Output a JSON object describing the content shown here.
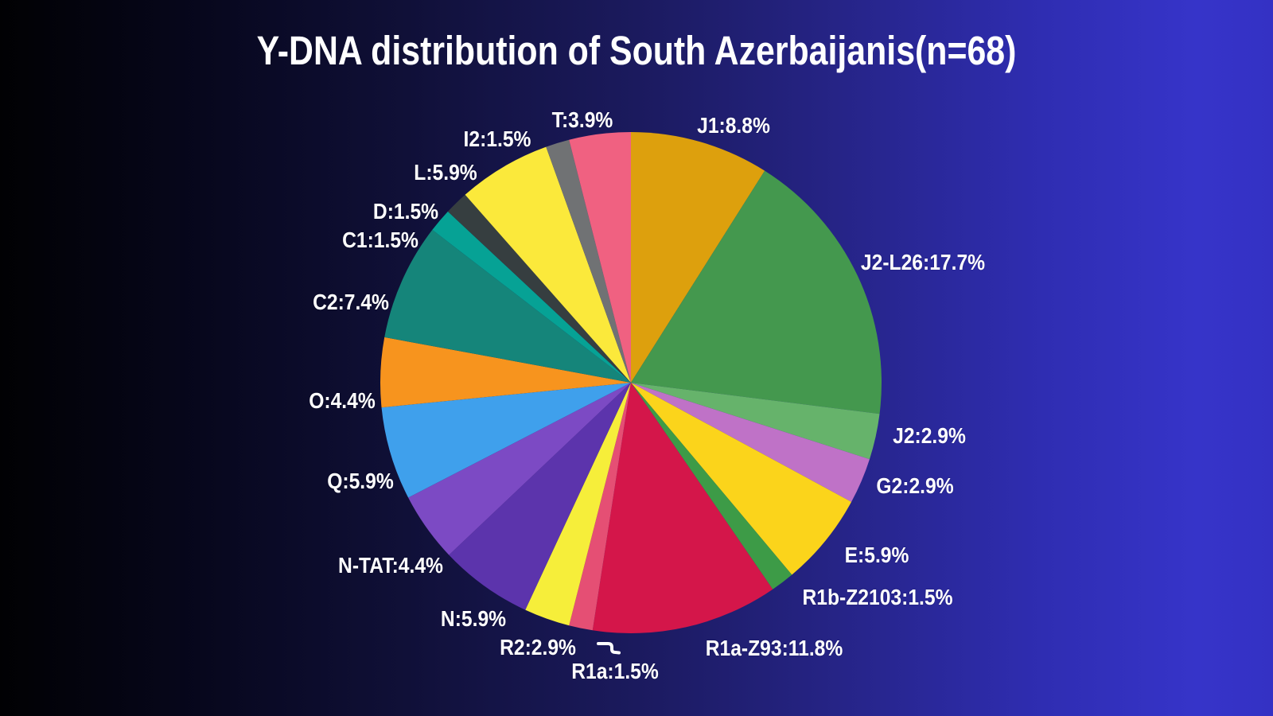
{
  "title": "Y-DNA distribution of South Azerbaijanis(n=68)",
  "colors": {
    "background_left": "#010103",
    "background_right": "#3431c4",
    "text": "#ffffff",
    "leader_line": "#ffffff"
  },
  "chart_data": {
    "type": "pie",
    "title": "Y-DNA distribution of South Azerbaijanis(n=68)",
    "sample_size": 68,
    "start_angle_deg": 0,
    "direction": "clockwise",
    "legend_position": "labels-around-pie",
    "slices": [
      {
        "label": "J1",
        "value": 8.8,
        "display": "J1:8.8%",
        "color": "#DDA00D"
      },
      {
        "label": "J2-L26",
        "value": 17.7,
        "display": "J2-L26:17.7%",
        "color": "#44984E"
      },
      {
        "label": "J2",
        "value": 2.9,
        "display": "J2:2.9%",
        "color": "#66B36B"
      },
      {
        "label": "G2",
        "value": 2.9,
        "display": "G2:2.9%",
        "color": "#BF72C7"
      },
      {
        "label": "E",
        "value": 5.9,
        "display": "E:5.9%",
        "color": "#FBD41B"
      },
      {
        "label": "R1b-Z2103",
        "value": 1.5,
        "display": "R1b-Z2103:1.5%",
        "color": "#3D9B47"
      },
      {
        "label": "R1a-Z93",
        "value": 11.8,
        "display": "R1a-Z93:11.8%",
        "color": "#D4164A"
      },
      {
        "label": "R1a",
        "value": 1.5,
        "display": "R1a:1.5%",
        "color": "#E54F74"
      },
      {
        "label": "R2",
        "value": 2.9,
        "display": "R2:2.9%",
        "color": "#F6EE3A"
      },
      {
        "label": "N",
        "value": 5.9,
        "display": "N:5.9%",
        "color": "#5C34AC"
      },
      {
        "label": "N-TAT",
        "value": 4.4,
        "display": "N-TAT:4.4%",
        "color": "#7C4AC4"
      },
      {
        "label": "Q",
        "value": 5.9,
        "display": "Q:5.9%",
        "color": "#3FA0EC"
      },
      {
        "label": "O",
        "value": 4.4,
        "display": "O:4.4%",
        "color": "#F7941E"
      },
      {
        "label": "C2",
        "value": 7.4,
        "display": "C2:7.4%",
        "color": "#15857A"
      },
      {
        "label": "C1",
        "value": 1.5,
        "display": "C1:1.5%",
        "color": "#06A295"
      },
      {
        "label": "D",
        "value": 1.5,
        "display": "D:1.5%",
        "color": "#363E40"
      },
      {
        "label": "L",
        "value": 5.9,
        "display": "L:5.9%",
        "color": "#FBE93B"
      },
      {
        "label": "I2",
        "value": 1.5,
        "display": "I2:1.5%",
        "color": "#707274"
      },
      {
        "label": "T",
        "value": 3.9,
        "display": "T:3.9%",
        "color": "#F06181"
      }
    ]
  }
}
